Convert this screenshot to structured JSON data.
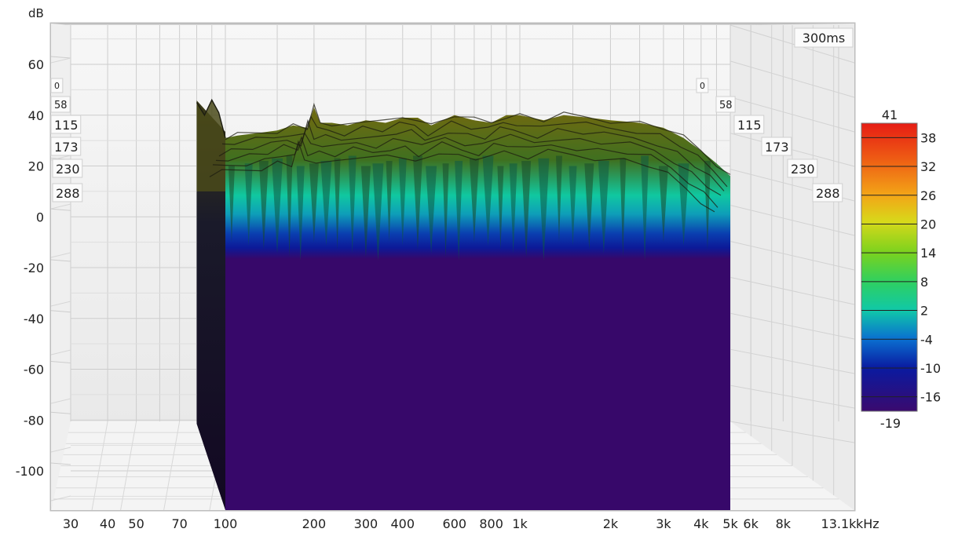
{
  "chart_data": {
    "type": "waterfall-3d",
    "y_unit": "dB",
    "x_unit": "kHz",
    "time_label": "300ms",
    "ylim": [
      -115,
      72
    ],
    "xlim": [
      25,
      13100
    ],
    "x_scale": "log",
    "grid": true,
    "y_ticks": [
      "60",
      "40",
      "20",
      "0",
      "-20",
      "-40",
      "-60",
      "-80",
      "-100"
    ],
    "y_tick_values": [
      60,
      40,
      20,
      0,
      -20,
      -40,
      -60,
      -80,
      -100
    ],
    "x_ticks": [
      "30",
      "40",
      "50",
      "70",
      "100",
      "200",
      "300",
      "400",
      "600",
      "800",
      "1k",
      "2k",
      "3k",
      "4k",
      "5k",
      "6k",
      "8k",
      "13.1k"
    ],
    "x_tick_values": [
      30,
      40,
      50,
      70,
      100,
      200,
      300,
      400,
      600,
      800,
      1000,
      2000,
      3000,
      4000,
      5000,
      6000,
      8000,
      13100
    ],
    "time_slices_ms": [
      "0",
      "58",
      "115",
      "173",
      "230",
      "288"
    ],
    "colorbar": {
      "max_label": "41",
      "min_label": "-19",
      "ticks": [
        "38",
        "32",
        "26",
        "20",
        "14",
        "8",
        "2",
        "-4",
        "-10",
        "-16"
      ],
      "tick_values": [
        38,
        32,
        26,
        20,
        14,
        8,
        2,
        -4,
        -10,
        -16
      ],
      "range": [
        -19,
        41
      ],
      "colors": [
        "#3a0a6e",
        "#0a1aa0",
        "#0a6fd0",
        "#10c8a8",
        "#2fd060",
        "#7ad21e",
        "#d8d81a",
        "#f3a517",
        "#ee5a14",
        "#e61c14"
      ]
    },
    "response_freqs": [
      80,
      85,
      90,
      95,
      100,
      110,
      130,
      150,
      170,
      190,
      200,
      210,
      230,
      260,
      300,
      350,
      400,
      450,
      500,
      600,
      700,
      800,
      900,
      1000,
      1200,
      1400,
      1700,
      2000,
      2500,
      3000,
      3500,
      4000,
      4500,
      5000
    ],
    "response_db": [
      45,
      40,
      46,
      41,
      31,
      32,
      33,
      34,
      36,
      35,
      43,
      37,
      37,
      36,
      38,
      37,
      39,
      39,
      36,
      40,
      38,
      37,
      40,
      40,
      38,
      40,
      39,
      38,
      37,
      35,
      31,
      26,
      21,
      16
    ]
  }
}
